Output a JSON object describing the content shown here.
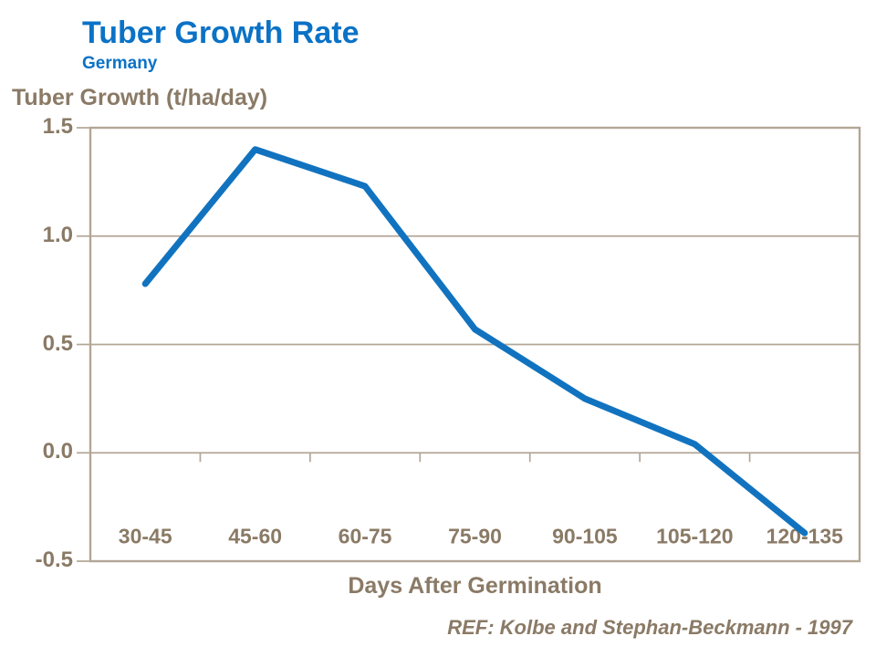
{
  "header": {
    "title": "Tuber Growth Rate",
    "subtitle": "Germany",
    "title_color": "#0b72c6"
  },
  "chart_data": {
    "type": "line",
    "title": "Tuber Growth Rate",
    "subtitle": "Germany",
    "categories": [
      "30-45",
      "45-60",
      "60-75",
      "75-90",
      "90-105",
      "105-120",
      "120-135"
    ],
    "values": [
      0.78,
      1.4,
      1.23,
      0.57,
      0.25,
      0.04,
      -0.37
    ],
    "series_name": "tuber-growth-rate",
    "xlabel": "Days After Germination",
    "ylabel": "Tuber Growth (t/ha/day)",
    "ylim": [
      -0.5,
      1.5
    ],
    "y_ticks": [
      1.5,
      1.0,
      0.5,
      0.0,
      -0.5
    ],
    "y_tick_labels": [
      "1.5",
      "1.0",
      "0.5",
      "0.0",
      "-0.5"
    ],
    "grid": "horizontal",
    "legend": "none",
    "line_color": "#1173bf",
    "axis_color": "#b3a696",
    "text_color": "#8a7a66",
    "background_color": "#ffffff"
  },
  "footer": {
    "reference": "REF: Kolbe and Stephan-Beckmann - 1997"
  }
}
